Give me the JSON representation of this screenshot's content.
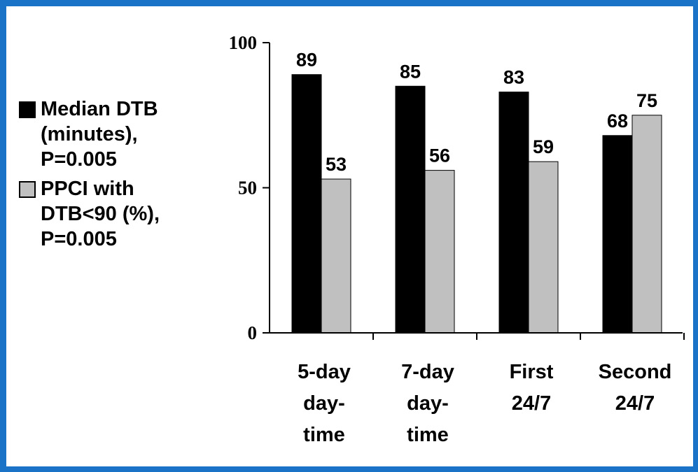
{
  "chart_data": {
    "type": "bar",
    "categories": [
      [
        "5-day",
        "day-",
        "time"
      ],
      [
        "7-day",
        "day-",
        "time"
      ],
      [
        "First",
        "24/7"
      ],
      [
        "Second",
        "24/7"
      ]
    ],
    "series": [
      {
        "name_lines": [
          "Median DTB",
          "(minutes),",
          "P=0.005"
        ],
        "color": "#000000",
        "values": [
          89,
          85,
          83,
          68
        ]
      },
      {
        "name_lines": [
          "PPCI with",
          "DTB<90 (%),",
          "P=0.005"
        ],
        "color": "#c0c0c0",
        "values": [
          53,
          56,
          59,
          75
        ]
      }
    ],
    "ylim": [
      0,
      100
    ],
    "yticks": [
      0,
      50,
      100
    ],
    "grid": false,
    "legend_position": "left"
  },
  "colors": {
    "frame": "#1a73c7",
    "axis": "#000000"
  }
}
